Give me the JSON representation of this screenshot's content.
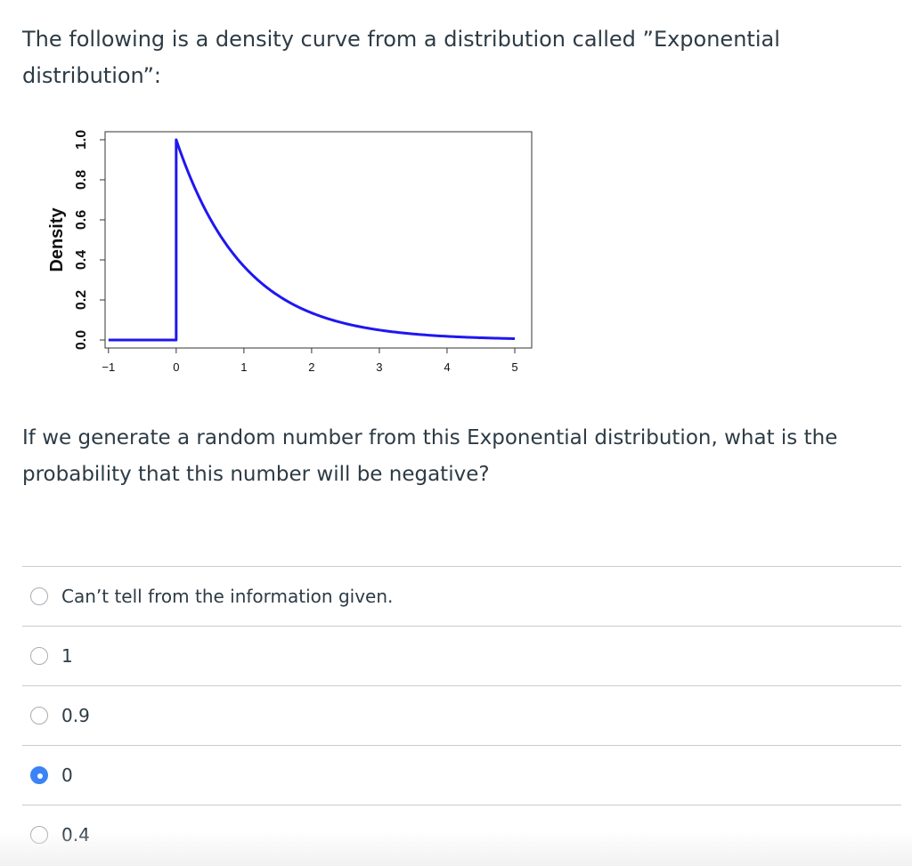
{
  "question": {
    "intro": "The following is a density curve from a distribution called ”Exponential distribution”:",
    "prompt": "If we generate a random number from this Exponential distribution, what is the probability that this number will be negative?"
  },
  "answers": [
    {
      "label": "Can’t tell from the information given.",
      "selected": false
    },
    {
      "label": "1",
      "selected": false
    },
    {
      "label": "0.9",
      "selected": false
    },
    {
      "label": "0",
      "selected": true
    },
    {
      "label": "0.4",
      "selected": false
    }
  ],
  "chart_data": {
    "type": "line",
    "title": "",
    "xlabel": "",
    "ylabel": "Density",
    "xlim": [
      -1.05,
      5.25
    ],
    "ylim": [
      -0.04,
      1.04
    ],
    "x_ticks": [
      -1,
      0,
      1,
      2,
      3,
      4,
      5
    ],
    "y_ticks": [
      "0.0",
      "0.2",
      "0.4",
      "0.6",
      "0.8",
      "1.0"
    ],
    "series": [
      {
        "color": "#1f17f0",
        "x": [
          -1,
          0,
          0,
          0.25,
          0.5,
          0.75,
          1,
          1.25,
          1.5,
          1.75,
          2,
          2.5,
          3,
          3.5,
          4,
          4.5,
          5
        ],
        "y": [
          0,
          0,
          1,
          0.779,
          0.607,
          0.472,
          0.368,
          0.287,
          0.223,
          0.174,
          0.135,
          0.082,
          0.05,
          0.03,
          0.018,
          0.011,
          0.007
        ]
      }
    ],
    "grid": false
  }
}
